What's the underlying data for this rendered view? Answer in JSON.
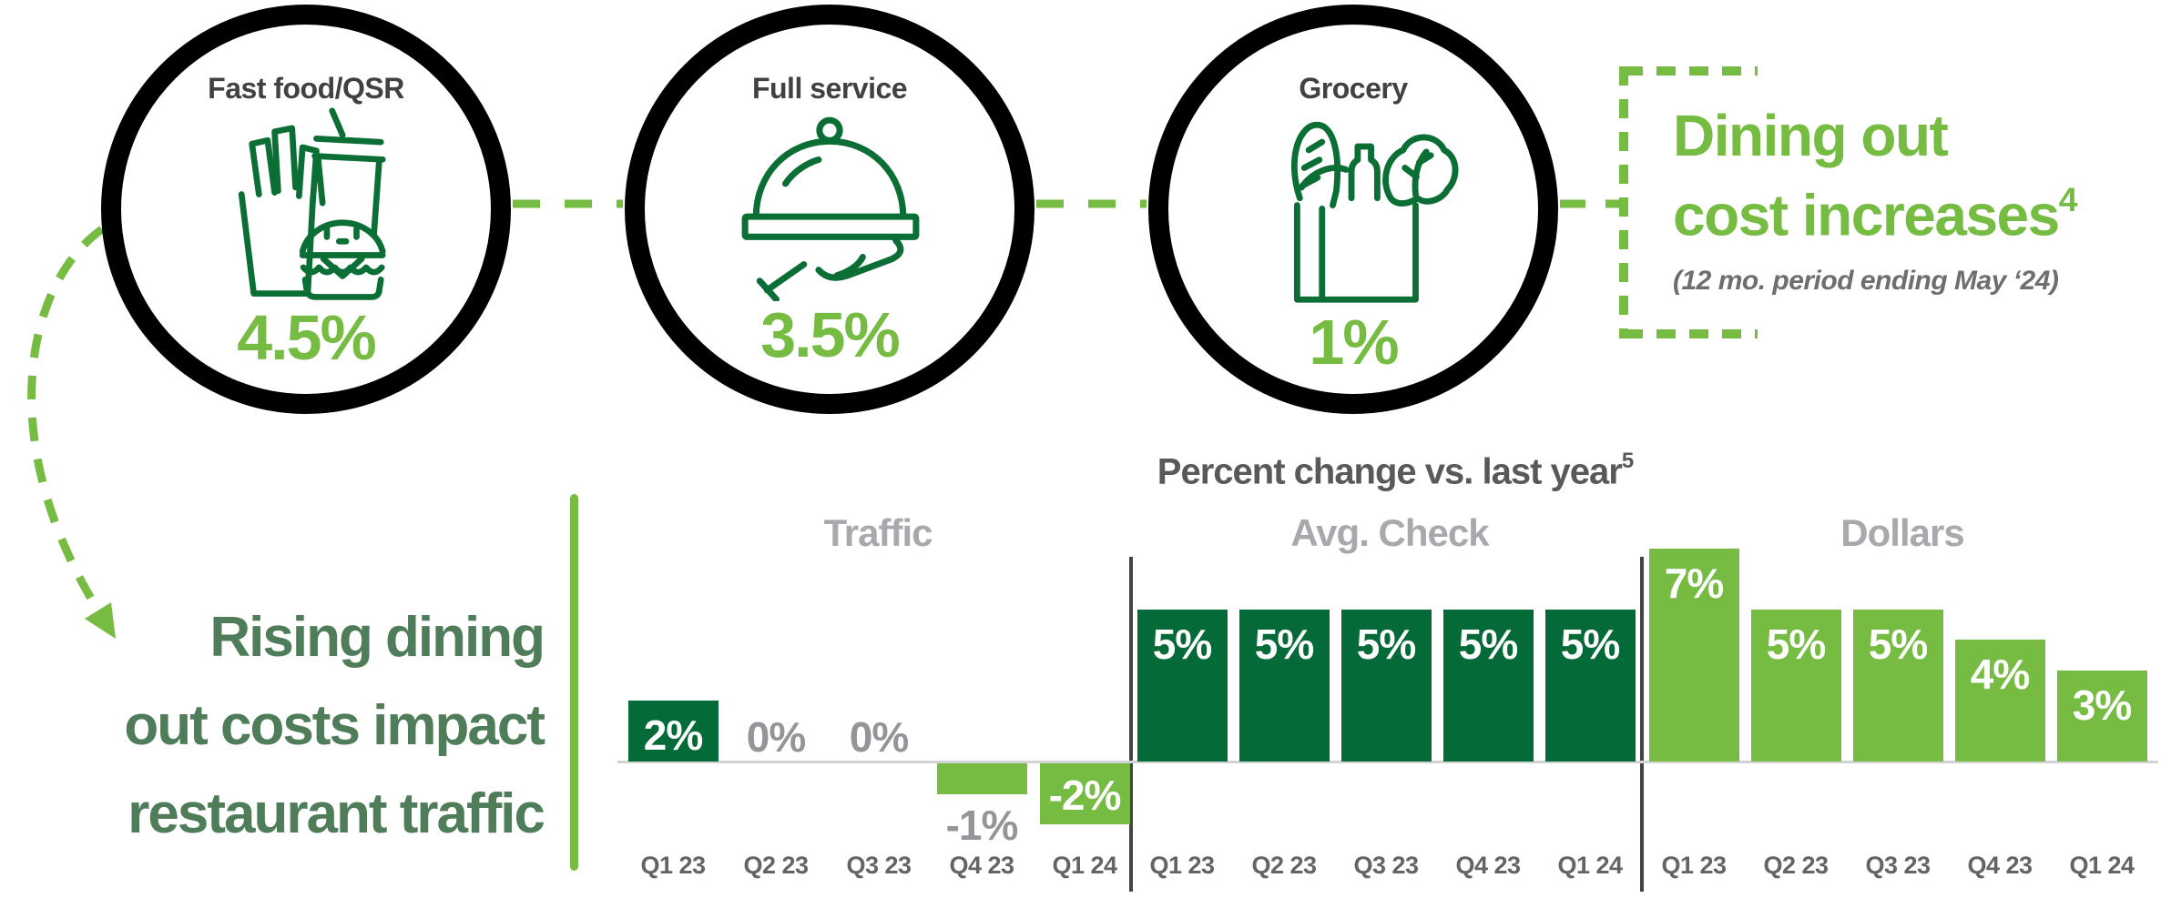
{
  "palette": {
    "dark_green": "#046A38",
    "light_green": "#76BC43",
    "icon_green": "#0B6E35",
    "sage_green": "#4F7D5A",
    "title_gray": "#414042",
    "chart_title_gray": "#58595B",
    "section_gray": "#A7A9AC",
    "zero_label_gray": "#939598",
    "quarter_gray": "#636466",
    "footnote_gray": "#6D6E71",
    "baseline_gray": "#D1D3D4",
    "divider_dark": "#3E4542",
    "ring_black": "#000000"
  },
  "categories": [
    {
      "title": "Fast food/QSR",
      "value": "4.5%",
      "icon": "fast-food-icon"
    },
    {
      "title": "Full service",
      "value": "3.5%",
      "icon": "cloche-icon"
    },
    {
      "title": "Grocery",
      "value": "1%",
      "icon": "grocery-bag-icon"
    }
  ],
  "callout": {
    "line1": "Dining out",
    "line2": "cost increases",
    "sup": "4",
    "footnote": "(12 mo. period ending May ‘24)"
  },
  "headline": {
    "line1": "Rising dining",
    "line2": "out costs impact",
    "line3": "restaurant traffic"
  },
  "chart_data": {
    "type": "bar",
    "title": "Percent change vs. last year",
    "title_sup": "5",
    "unit": "%",
    "categories": [
      "Q1 23",
      "Q2 23",
      "Q3 23",
      "Q4 23",
      "Q1 24"
    ],
    "series": [
      {
        "name": "Traffic",
        "values": [
          2,
          0,
          0,
          -1,
          -2
        ],
        "bar_colors": [
          "dark_green",
          null,
          null,
          "light_green",
          "light_green"
        ],
        "label_styles": [
          "white-inside",
          "gray-above",
          "gray-above",
          "gray-below",
          "white-inside"
        ]
      },
      {
        "name": "Avg. Check",
        "values": [
          5,
          5,
          5,
          5,
          5
        ],
        "bar_colors": [
          "dark_green",
          "dark_green",
          "dark_green",
          "dark_green",
          "dark_green"
        ],
        "label_styles": [
          "white-inside",
          "white-inside",
          "white-inside",
          "white-inside",
          "white-inside"
        ]
      },
      {
        "name": "Dollars",
        "values": [
          7,
          5,
          5,
          4,
          3
        ],
        "bar_colors": [
          "light_green",
          "light_green",
          "light_green",
          "light_green",
          "light_green"
        ],
        "label_styles": [
          "white-inside",
          "white-inside",
          "white-inside",
          "white-inside",
          "white-inside"
        ]
      }
    ],
    "ylim": [
      -2,
      7
    ],
    "baseline_value": 0,
    "legend": false,
    "gridlines": false
  }
}
